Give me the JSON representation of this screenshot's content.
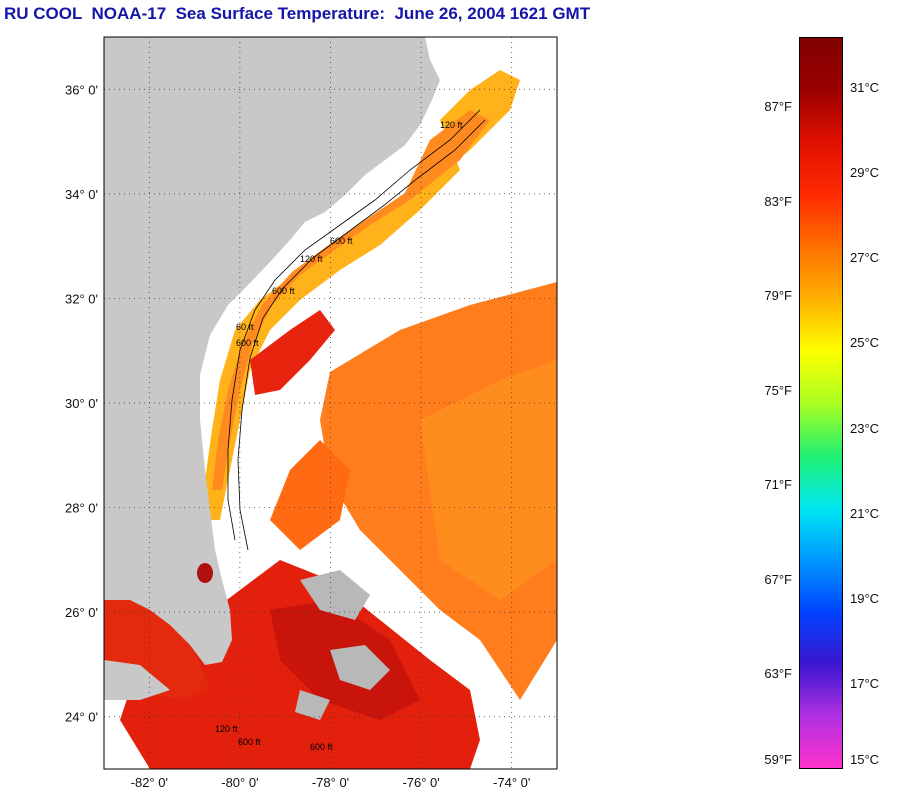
{
  "title": "RU COOL  NOAA-17  Sea Surface Temperature:  June 26, 2004 1621 GMT",
  "map": {
    "lon_range": [
      -83,
      -73
    ],
    "lat_range": [
      23.0,
      37.0
    ],
    "lat_ticks": [
      {
        "value": 36,
        "label": "36° 0'"
      },
      {
        "value": 34,
        "label": "34° 0'"
      },
      {
        "value": 32,
        "label": "32° 0'"
      },
      {
        "value": 30,
        "label": "30° 0'"
      },
      {
        "value": 28,
        "label": "28° 0'"
      },
      {
        "value": 26,
        "label": "26° 0'"
      },
      {
        "value": 24,
        "label": "24° 0'"
      }
    ],
    "lon_ticks": [
      {
        "value": -82,
        "label": "-82° 0'"
      },
      {
        "value": -80,
        "label": "-80° 0'"
      },
      {
        "value": -78,
        "label": "-78° 0'"
      },
      {
        "value": -76,
        "label": "-76° 0'"
      },
      {
        "value": -74,
        "label": "-74° 0'"
      }
    ],
    "contour_labels": [
      "120 ft",
      "600 ft",
      "120 ft",
      "600 ft",
      "60 ft",
      "600 ft",
      "120 ft",
      "600 ft",
      "600 ft"
    ],
    "colors": {
      "land": "#c8c8c8",
      "cloud": "#ffffff",
      "warm": "#ff7a18",
      "hot": "#e81c10",
      "shelf": "#ffb81a"
    }
  },
  "colorbar": {
    "fahrenheit": [
      {
        "value": 87,
        "label": "87°F"
      },
      {
        "value": 83,
        "label": "83°F"
      },
      {
        "value": 79,
        "label": "79°F"
      },
      {
        "value": 75,
        "label": "75°F"
      },
      {
        "value": 71,
        "label": "71°F"
      },
      {
        "value": 67,
        "label": "67°F"
      },
      {
        "value": 63,
        "label": "63°F"
      },
      {
        "value": 59,
        "label": "59°F"
      }
    ],
    "celsius": [
      {
        "value": 31,
        "label": "31°C"
      },
      {
        "value": 29,
        "label": "29°C"
      },
      {
        "value": 27,
        "label": "27°C"
      },
      {
        "value": 25,
        "label": "25°C"
      },
      {
        "value": 23,
        "label": "23°C"
      },
      {
        "value": 21,
        "label": "21°C"
      },
      {
        "value": 19,
        "label": "19°C"
      },
      {
        "value": 17,
        "label": "17°C"
      },
      {
        "value": 15,
        "label": "15°C"
      }
    ],
    "stops": [
      "#ff33cc",
      "#b030e0",
      "#3a16d0",
      "#0044ff",
      "#0099ff",
      "#00e8f0",
      "#22f070",
      "#aaff22",
      "#ffff00",
      "#ffb000",
      "#ff7000",
      "#ff2a00",
      "#e01000",
      "#9a0000",
      "#800000"
    ]
  }
}
